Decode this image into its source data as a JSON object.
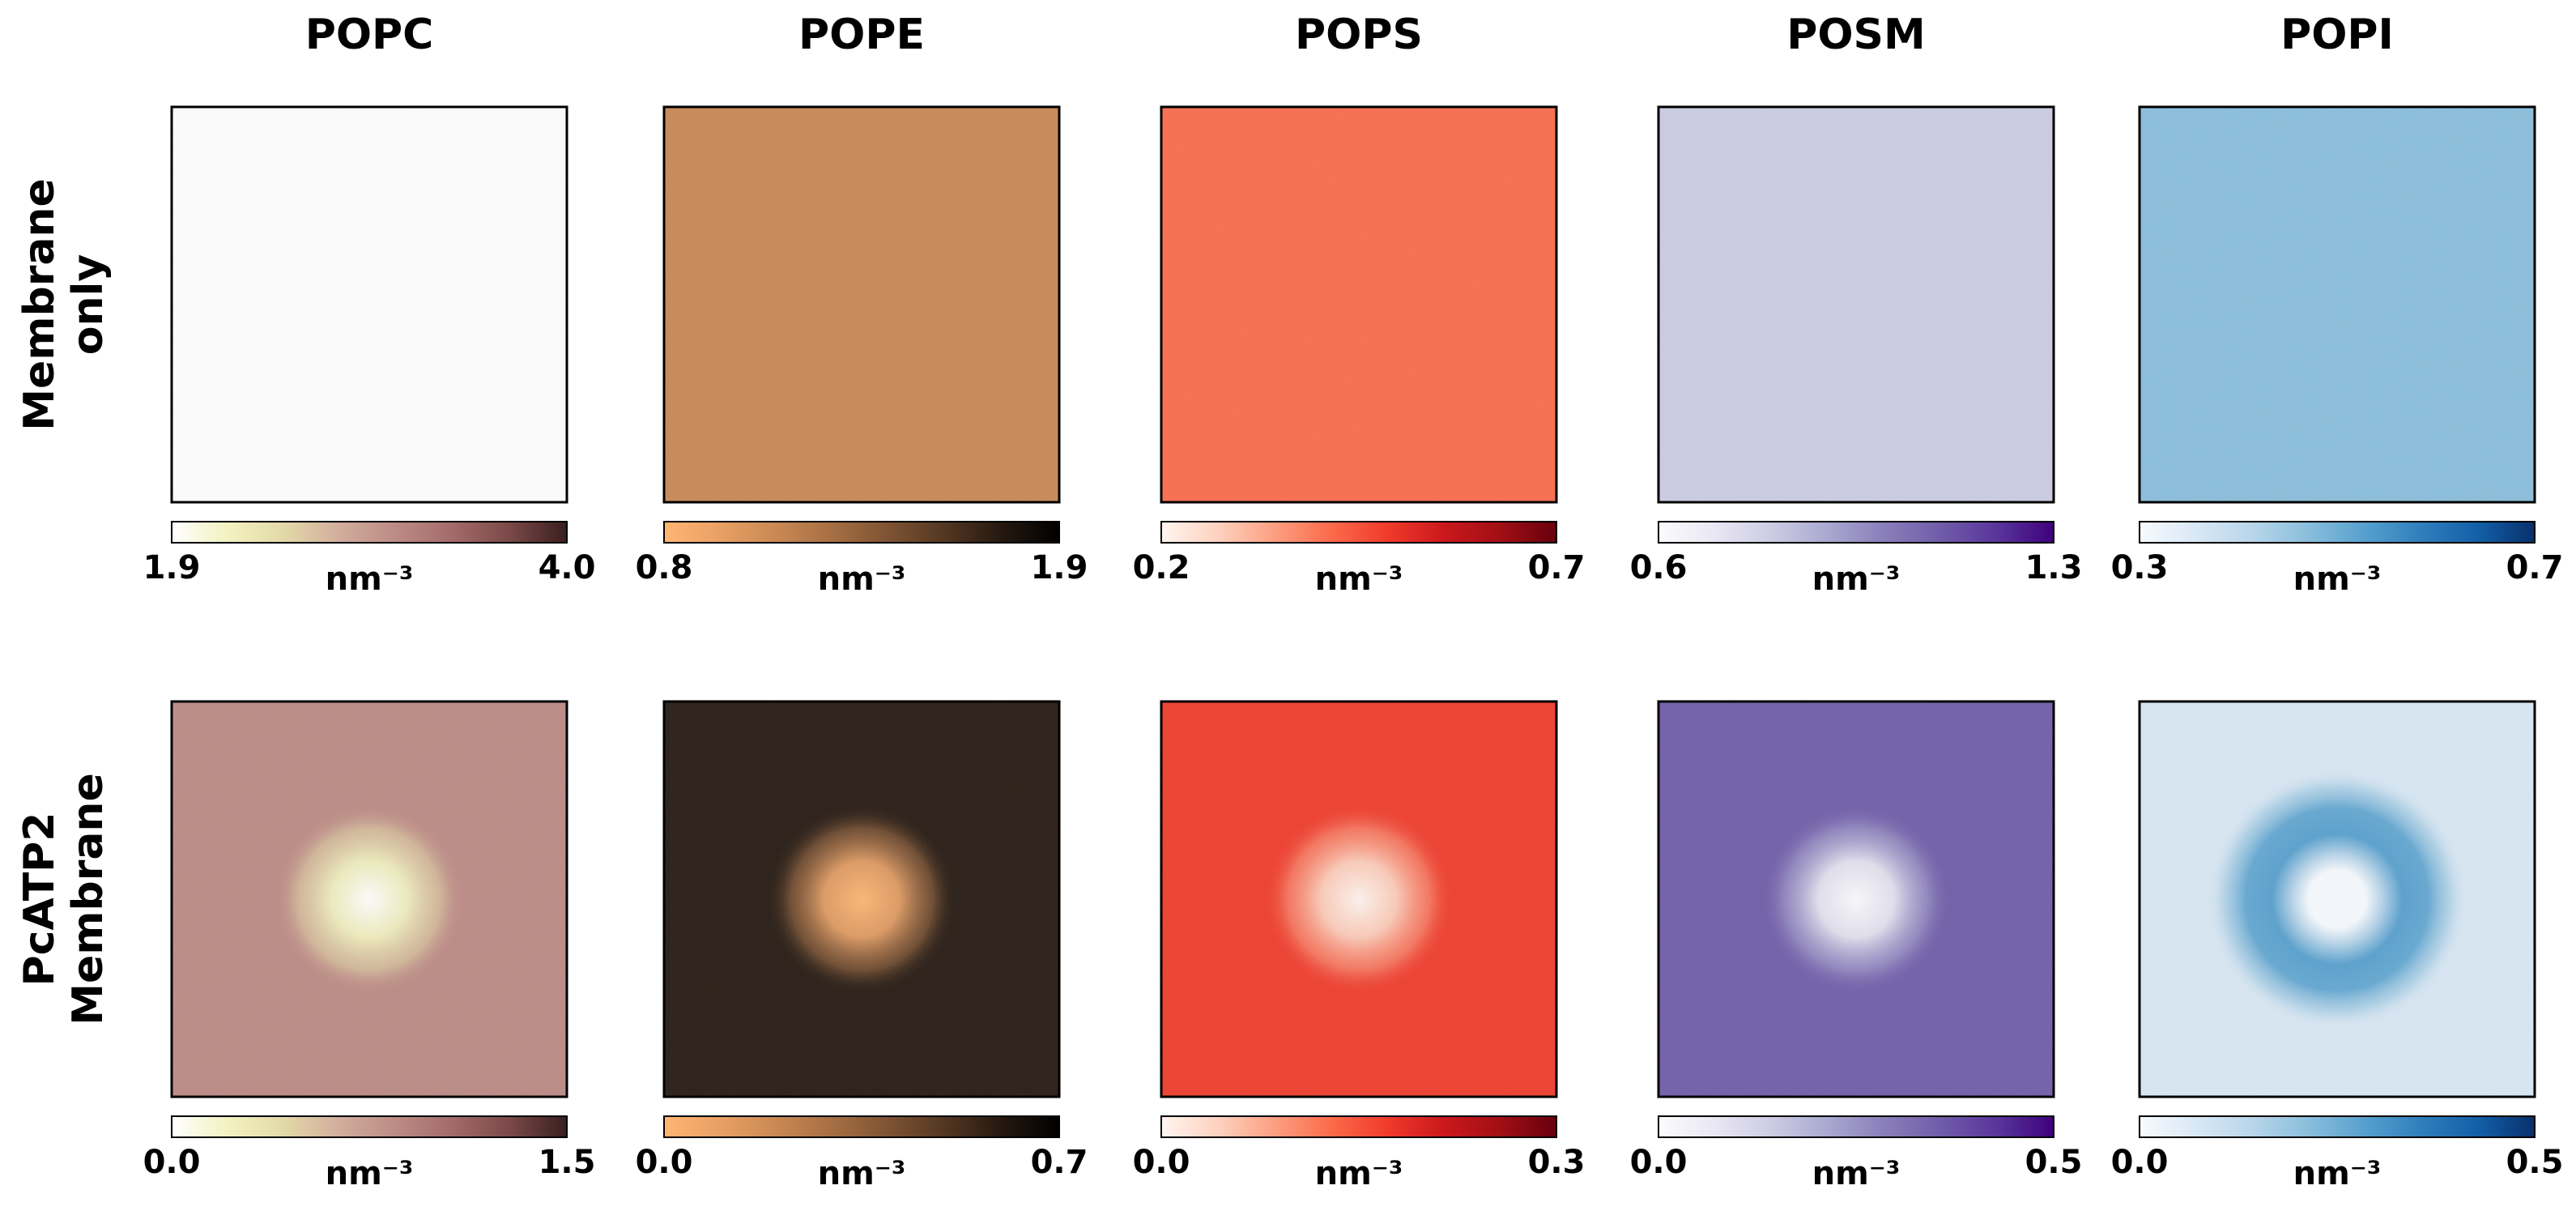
{
  "chart_data": {
    "type": "heatmap",
    "description_of_panels": "2D lipid number-density maps (nm^-3) for five lipid species, membrane-only vs PcATP2-embedded membrane",
    "columns": [
      "POPC",
      "POPE",
      "POPS",
      "POSM",
      "POPI"
    ],
    "rows": [
      {
        "label_lines": [
          "Membrane",
          "only"
        ],
        "panels": [
          {
            "lipid": "POPC",
            "cmap": "pink_r",
            "vmin_label": "1.9",
            "vmax_label": "4.0",
            "unit": "nm⁻³",
            "pattern": "uniform",
            "level": 0.05
          },
          {
            "lipid": "POPE",
            "cmap": "copper_r",
            "vmin_label": "0.8",
            "vmax_label": "1.9",
            "unit": "nm⁻³",
            "pattern": "uniform",
            "level": 0.35
          },
          {
            "lipid": "POPS",
            "cmap": "Reds",
            "vmin_label": "0.2",
            "vmax_label": "0.7",
            "unit": "nm⁻³",
            "pattern": "uniform",
            "level": 0.4
          },
          {
            "lipid": "POSM",
            "cmap": "Purples",
            "vmin_label": "0.6",
            "vmax_label": "1.3",
            "unit": "nm⁻³",
            "pattern": "uniform",
            "level": 0.22
          },
          {
            "lipid": "POPI",
            "cmap": "Blues",
            "vmin_label": "0.3",
            "vmax_label": "0.7",
            "unit": "nm⁻³",
            "pattern": "uniform",
            "level": 0.38
          }
        ]
      },
      {
        "label_lines": [
          "PcATP2",
          "Membrane"
        ],
        "panels": [
          {
            "lipid": "POPC",
            "cmap": "pink_r",
            "vmin_label": "0.0",
            "vmax_label": "1.5",
            "unit": "nm⁻³",
            "pattern": "central_depletion",
            "level": 0.5
          },
          {
            "lipid": "POPE",
            "cmap": "copper_r",
            "vmin_label": "0.0",
            "vmax_label": "0.7",
            "unit": "nm⁻³",
            "pattern": "central_depletion",
            "level": 0.8
          },
          {
            "lipid": "POPS",
            "cmap": "Reds",
            "vmin_label": "0.0",
            "vmax_label": "0.3",
            "unit": "nm⁻³",
            "pattern": "central_depletion",
            "level": 0.55
          },
          {
            "lipid": "POSM",
            "cmap": "Purples",
            "vmin_label": "0.0",
            "vmax_label": "0.5",
            "unit": "nm⁻³",
            "pattern": "central_depletion",
            "level": 0.7
          },
          {
            "lipid": "POPI",
            "cmap": "Blues",
            "vmin_label": "0.0",
            "vmax_label": "0.5",
            "unit": "nm⁻³",
            "pattern": "central_depletion_with_ring",
            "level": 0.2,
            "ring_level": 0.62
          }
        ]
      }
    ],
    "colormaps": {
      "pink_r": [
        "#ffffff",
        "#f2f2c0",
        "#e3d8a8",
        "#d1ac9c",
        "#bc8a84",
        "#a26a6a",
        "#7a4848",
        "#3a1e1e"
      ],
      "copper_r": [
        "#ffb673",
        "#e8a065",
        "#c98853",
        "#a56e43",
        "#7d5233",
        "#523621",
        "#241810",
        "#000000"
      ],
      "Reds": [
        "#fff5f0",
        "#fdd2bf",
        "#fc9f81",
        "#fb6b4b",
        "#f03b2b",
        "#cb181d",
        "#a10f15",
        "#67000d"
      ],
      "Purples": [
        "#fcfbfd",
        "#e9e7f2",
        "#cccce4",
        "#a9a8d0",
        "#8a7eba",
        "#705ca9",
        "#59359a",
        "#3f007d"
      ],
      "Blues": [
        "#f7fbff",
        "#d9e8f5",
        "#b8d5ea",
        "#89bedc",
        "#56a0ce",
        "#2f7ebc",
        "#135fa7",
        "#08306b"
      ]
    }
  }
}
